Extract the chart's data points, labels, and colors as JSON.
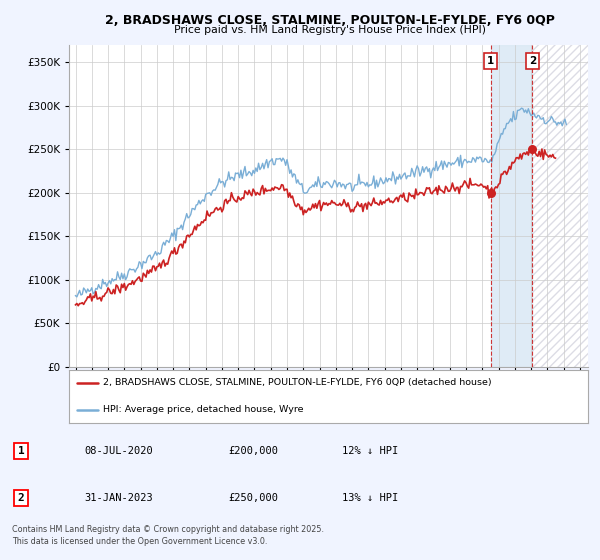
{
  "title": "2, BRADSHAWS CLOSE, STALMINE, POULTON-LE-FYLDE, FY6 0QP",
  "subtitle": "Price paid vs. HM Land Registry's House Price Index (HPI)",
  "bg_color": "#f0f4ff",
  "plot_bg_color": "#ffffff",
  "hpi_color": "#7aaed6",
  "price_color": "#cc2222",
  "sale1_x": 2020.52,
  "sale1_y": 200000,
  "sale2_x": 2023.08,
  "sale2_y": 250000,
  "legend_line1": "2, BRADSHAWS CLOSE, STALMINE, POULTON-LE-FYLDE, FY6 0QP (detached house)",
  "legend_line2": "HPI: Average price, detached house, Wyre",
  "table_row1_num": "1",
  "table_row1_date": "08-JUL-2020",
  "table_row1_price": "£200,000",
  "table_row1_hpi": "12% ↓ HPI",
  "table_row2_num": "2",
  "table_row2_date": "31-JAN-2023",
  "table_row2_price": "£250,000",
  "table_row2_hpi": "13% ↓ HPI",
  "footer": "Contains HM Land Registry data © Crown copyright and database right 2025.\nThis data is licensed under the Open Government Licence v3.0.",
  "ylim": [
    0,
    370000
  ],
  "xlim_start": 1994.6,
  "xlim_end": 2026.5,
  "hatch_start": 2023.08,
  "shade_start": 2020.52,
  "shade_end": 2023.08
}
